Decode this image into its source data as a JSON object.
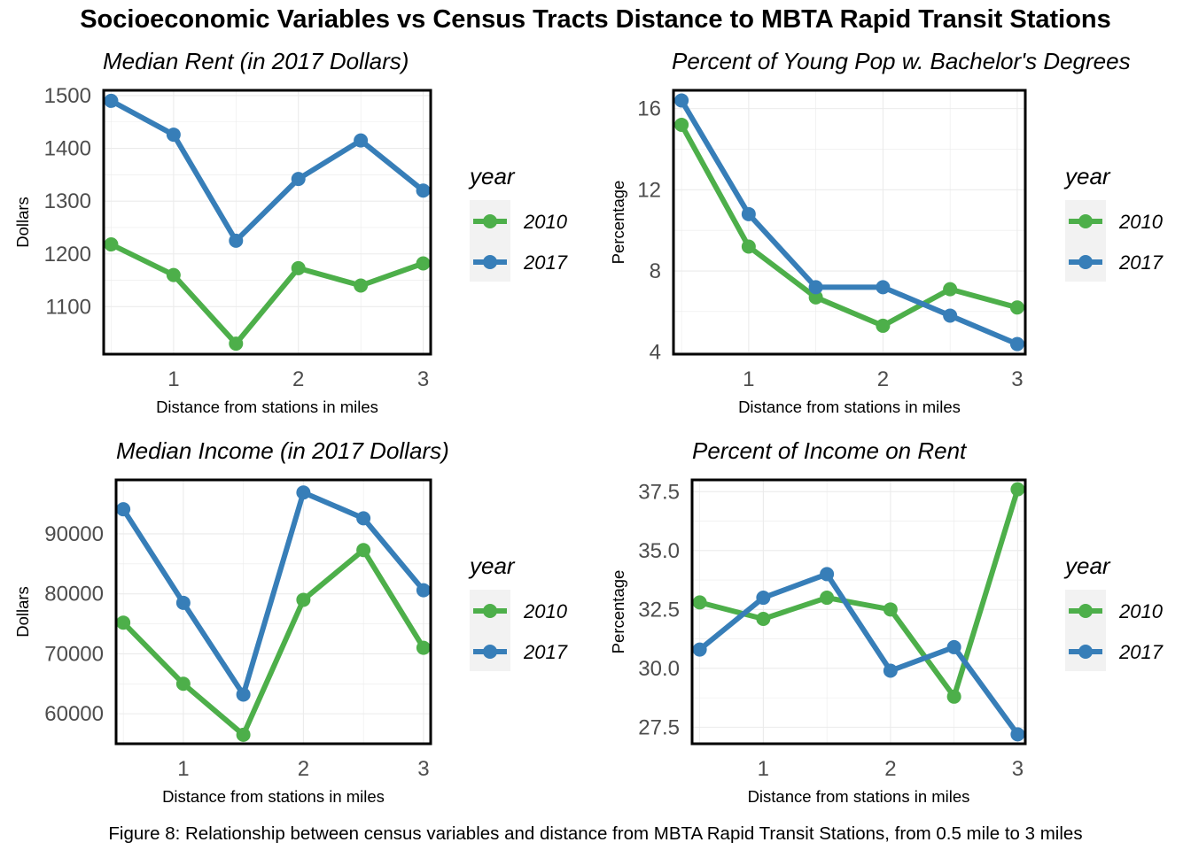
{
  "figure": {
    "title": "Socioeconomic Variables vs Census Tracts Distance to MBTA Rapid Transit Stations",
    "caption": "Figure 8: Relationship between census variables and distance from MBTA Rapid Transit Stations, from 0.5 mile to 3 miles"
  },
  "colors": {
    "2010": "#4DAF4A",
    "2017": "#377EB8",
    "grid": "#ebebeb",
    "axis_text": "#4d4d4d",
    "legend_bg": "#f2f2f2"
  },
  "legend": {
    "title": "year",
    "items": [
      "2010",
      "2017"
    ]
  },
  "chart_data": [
    {
      "type": "line",
      "title": "Median Rent (in 2017 Dollars)",
      "xlabel": "Distance from stations in miles",
      "ylabel": "Dollars",
      "x": [
        0.5,
        1,
        1.5,
        2,
        2.5,
        3
      ],
      "xlim": [
        0.44,
        3.06
      ],
      "ylim": [
        1010,
        1510
      ],
      "xticks": [
        1,
        2,
        3
      ],
      "yticks": [
        1100,
        1200,
        1300,
        1400,
        1500
      ],
      "ytick_labels": [
        "1100",
        "1200",
        "1300",
        "1400",
        "1500"
      ],
      "series": [
        {
          "name": "2010",
          "values": [
            1218,
            1160,
            1030,
            1173,
            1140,
            1182
          ]
        },
        {
          "name": "2017",
          "values": [
            1490,
            1426,
            1225,
            1342,
            1415,
            1320
          ]
        }
      ]
    },
    {
      "type": "line",
      "title": "Percent of Young Pop w. Bachelor's Degrees",
      "xlabel": "Distance from stations in miles",
      "ylabel": "Percentage",
      "x": [
        0.5,
        1,
        1.5,
        2,
        2.5,
        3
      ],
      "xlim": [
        0.44,
        3.06
      ],
      "ylim": [
        3.9,
        16.9
      ],
      "xticks": [
        1,
        2,
        3
      ],
      "yticks": [
        4,
        8,
        12,
        16
      ],
      "ytick_labels": [
        "4",
        "8",
        "12",
        "16"
      ],
      "series": [
        {
          "name": "2010",
          "values": [
            15.2,
            9.2,
            6.7,
            5.3,
            7.1,
            6.2
          ]
        },
        {
          "name": "2017",
          "values": [
            16.4,
            10.8,
            7.2,
            7.2,
            5.8,
            4.4
          ]
        }
      ]
    },
    {
      "type": "line",
      "title": "Median Income (in 2017 Dollars)",
      "xlabel": "Distance from stations in miles",
      "ylabel": "Dollars",
      "x": [
        0.5,
        1,
        1.5,
        2,
        2.5,
        3
      ],
      "xlim": [
        0.44,
        3.06
      ],
      "ylim": [
        55000,
        99000
      ],
      "xticks": [
        1,
        2,
        3
      ],
      "yticks": [
        60000,
        70000,
        80000,
        90000
      ],
      "ytick_labels": [
        "60000",
        "70000",
        "80000",
        "90000"
      ],
      "series": [
        {
          "name": "2010",
          "values": [
            75200,
            65000,
            56500,
            79000,
            87300,
            71000
          ]
        },
        {
          "name": "2017",
          "values": [
            94100,
            78500,
            63200,
            96900,
            92600,
            80600
          ]
        }
      ]
    },
    {
      "type": "line",
      "title": "Percent of Income on Rent",
      "xlabel": "Distance from stations in miles",
      "ylabel": "Percentage",
      "x": [
        0.5,
        1,
        1.5,
        2,
        2.5,
        3
      ],
      "xlim": [
        0.44,
        3.06
      ],
      "ylim": [
        26.8,
        38.0
      ],
      "xticks": [
        1,
        2,
        3
      ],
      "yticks": [
        27.5,
        30.0,
        32.5,
        35.0,
        37.5
      ],
      "ytick_labels": [
        "27.5",
        "30.0",
        "32.5",
        "35.0",
        "37.5"
      ],
      "series": [
        {
          "name": "2010",
          "values": [
            32.8,
            32.1,
            33.0,
            32.5,
            28.8,
            37.6
          ]
        },
        {
          "name": "2017",
          "values": [
            30.8,
            33.0,
            34.0,
            29.9,
            30.9,
            27.2
          ]
        }
      ]
    }
  ]
}
